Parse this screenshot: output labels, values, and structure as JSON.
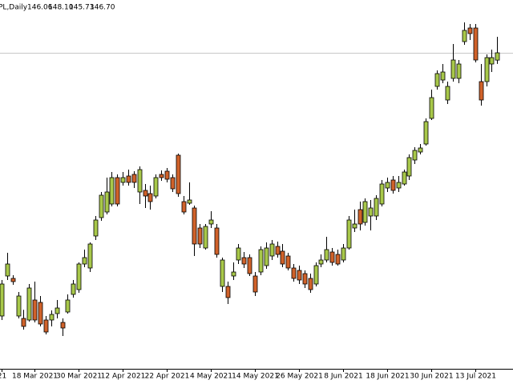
{
  "chart_data": {
    "type": "candlestick",
    "info": {
      "name": "PL,Daily",
      "values": [
        146.06,
        148.1,
        145.73,
        146.7
      ],
      "value_labels": [
        "146.06",
        "148.10",
        "145.73",
        "146.70"
      ]
    },
    "categories": [
      "21",
      null,
      null,
      null,
      null,
      null,
      "18 Mar 2021",
      null,
      null,
      null,
      null,
      null,
      null,
      null,
      "30 Mar 2021",
      null,
      null,
      null,
      null,
      null,
      null,
      null,
      "12 Apr 2021",
      null,
      null,
      null,
      null,
      null,
      null,
      null,
      "22 Apr 2021",
      null,
      null,
      null,
      null,
      null,
      null,
      null,
      "4 May 2021",
      null,
      null,
      null,
      null,
      null,
      null,
      null,
      "14 May 2021",
      null,
      null,
      null,
      null,
      null,
      null,
      null,
      "26 May 2021",
      null,
      null,
      null,
      null,
      null,
      null,
      null,
      "8 Jun 2021",
      null,
      null,
      null,
      null,
      null,
      null,
      null,
      "18 Jun 2021",
      null,
      null,
      null,
      null,
      null,
      null,
      null,
      "30 Jun 2021",
      null,
      null,
      null,
      null,
      null,
      null,
      null,
      "13 Jul 2021",
      null,
      null,
      null,
      null
    ],
    "open": [
      123.67,
      127.17,
      126.96,
      123.67,
      123.46,
      123.32,
      125.07,
      124.86,
      123.32,
      123.32,
      123.88,
      123.11,
      124.02,
      125.56,
      125.98,
      128.22,
      127.87,
      130.67,
      132.28,
      132.77,
      133.47,
      135.78,
      135.36,
      135.92,
      136.06,
      134.52,
      134.66,
      134.38,
      134.17,
      136.06,
      136.34,
      135.78,
      137.74,
      133.68,
      133.54,
      133.12,
      131.37,
      129.62,
      131.72,
      131.37,
      126.26,
      126.26,
      127.17,
      128.57,
      128.78,
      128.78,
      127.17,
      127.52,
      128.08,
      128.92,
      129.76,
      129.34,
      128.92,
      127.87,
      127.66,
      127.38,
      126.96,
      126.47,
      128.22,
      128.57,
      129.27,
      129.06,
      128.57,
      129.62,
      131.37,
      132.98,
      131.86,
      132.42,
      132.42,
      133.47,
      134.87,
      135.57,
      134.87,
      135.22,
      135.92,
      137.32,
      138.02,
      138.72,
      140.96,
      143.76,
      144.32,
      142.57,
      144.46,
      144.46,
      147.68,
      148.87,
      148.87,
      144.18,
      144.18,
      145.72,
      146.06
    ],
    "high": [
      126.82,
      129.2,
      127.24,
      125.77,
      124.21,
      126.47,
      126.68,
      125.42,
      123.67,
      124.16,
      125.07,
      123.46,
      125.56,
      126.82,
      128.36,
      129.48,
      130.11,
      132.42,
      134.52,
      135.78,
      136.27,
      136.06,
      136.27,
      136.48,
      136.34,
      136.76,
      135.22,
      135.08,
      136.06,
      136.41,
      136.62,
      136.06,
      137.88,
      134.17,
      135.36,
      133.33,
      131.72,
      131.72,
      132.84,
      131.72,
      128.78,
      126.68,
      128.36,
      129.97,
      129.27,
      129.06,
      127.52,
      129.76,
      130.11,
      130.32,
      130.18,
      129.97,
      129.2,
      128.22,
      128.08,
      127.66,
      127.38,
      128.36,
      129.06,
      130.6,
      129.62,
      129.48,
      129.97,
      132.42,
      132.98,
      133.68,
      133.96,
      133.82,
      134.24,
      135.57,
      135.78,
      135.92,
      135.92,
      136.48,
      137.81,
      138.44,
      138.72,
      140.96,
      143.48,
      145.16,
      145.72,
      144.18,
      147.47,
      146.07,
      149.36,
      149.22,
      149.22,
      145.72,
      146.56,
      146.98,
      148.1
    ],
    "low": [
      123.32,
      126.82,
      126.4,
      123.46,
      122.48,
      123.18,
      123.11,
      122.76,
      122.06,
      122.76,
      123.46,
      121.92,
      123.88,
      125.28,
      125.7,
      127.94,
      127.52,
      130.32,
      132,
      132.56,
      133.26,
      133.26,
      135.08,
      135.08,
      134.87,
      133.47,
      133.12,
      132.98,
      133.96,
      135.5,
      135.36,
      134.52,
      134.1,
      132.56,
      133.4,
      128.92,
      129.62,
      129.48,
      131.37,
      128.78,
      125.77,
      124.72,
      126.82,
      128.22,
      127.87,
      127.17,
      125.42,
      127.24,
      127.8,
      128.57,
      128.78,
      127.94,
      127.66,
      126.68,
      126.47,
      126.12,
      125.7,
      126.26,
      127.94,
      128.36,
      128.08,
      128.08,
      128.36,
      129.48,
      131.02,
      131.16,
      131.58,
      131.16,
      132.07,
      133.26,
      134.52,
      134.38,
      134.52,
      135.08,
      135.57,
      136.97,
      137.81,
      138.58,
      140.82,
      143.48,
      144.04,
      142.22,
      144.18,
      144.04,
      147.4,
      147.82,
      145.86,
      142.08,
      143.76,
      145.02,
      145.73
    ],
    "close": [
      126.47,
      128.22,
      126.68,
      125.42,
      122.76,
      126.12,
      123.32,
      122.97,
      122.27,
      123.81,
      124.37,
      122.62,
      125.07,
      126.47,
      128.22,
      128.78,
      129.97,
      132.07,
      134.24,
      134.52,
      135.78,
      133.47,
      135.78,
      135.36,
      135.36,
      136.48,
      134.17,
      133.68,
      135.78,
      135.78,
      135.64,
      134.8,
      134.38,
      132.77,
      133.82,
      129.97,
      129.97,
      131.51,
      132.07,
      129.06,
      128.57,
      125.28,
      127.52,
      129.62,
      128.22,
      127.38,
      125.77,
      129.48,
      129.62,
      129.97,
      129.06,
      128.22,
      127.87,
      126.96,
      126.82,
      126.47,
      125.98,
      128.08,
      128.57,
      129.48,
      128.36,
      128.22,
      129.62,
      132.07,
      131.72,
      131.72,
      133.68,
      133.12,
      133.96,
      135.22,
      135.36,
      134.66,
      135.36,
      136.27,
      137.53,
      138.16,
      138.37,
      140.68,
      142.78,
      144.88,
      145.02,
      143.76,
      146.07,
      145.72,
      148.66,
      148.38,
      146.07,
      142.57,
      146.28,
      146.28,
      146.7
    ],
    "up_color": "#a8c84a",
    "down_color": "#d0622a",
    "price_line": 146.7,
    "price_line_color": "#c8c8c8",
    "ylim": [
      119.12,
      151.32
    ]
  }
}
